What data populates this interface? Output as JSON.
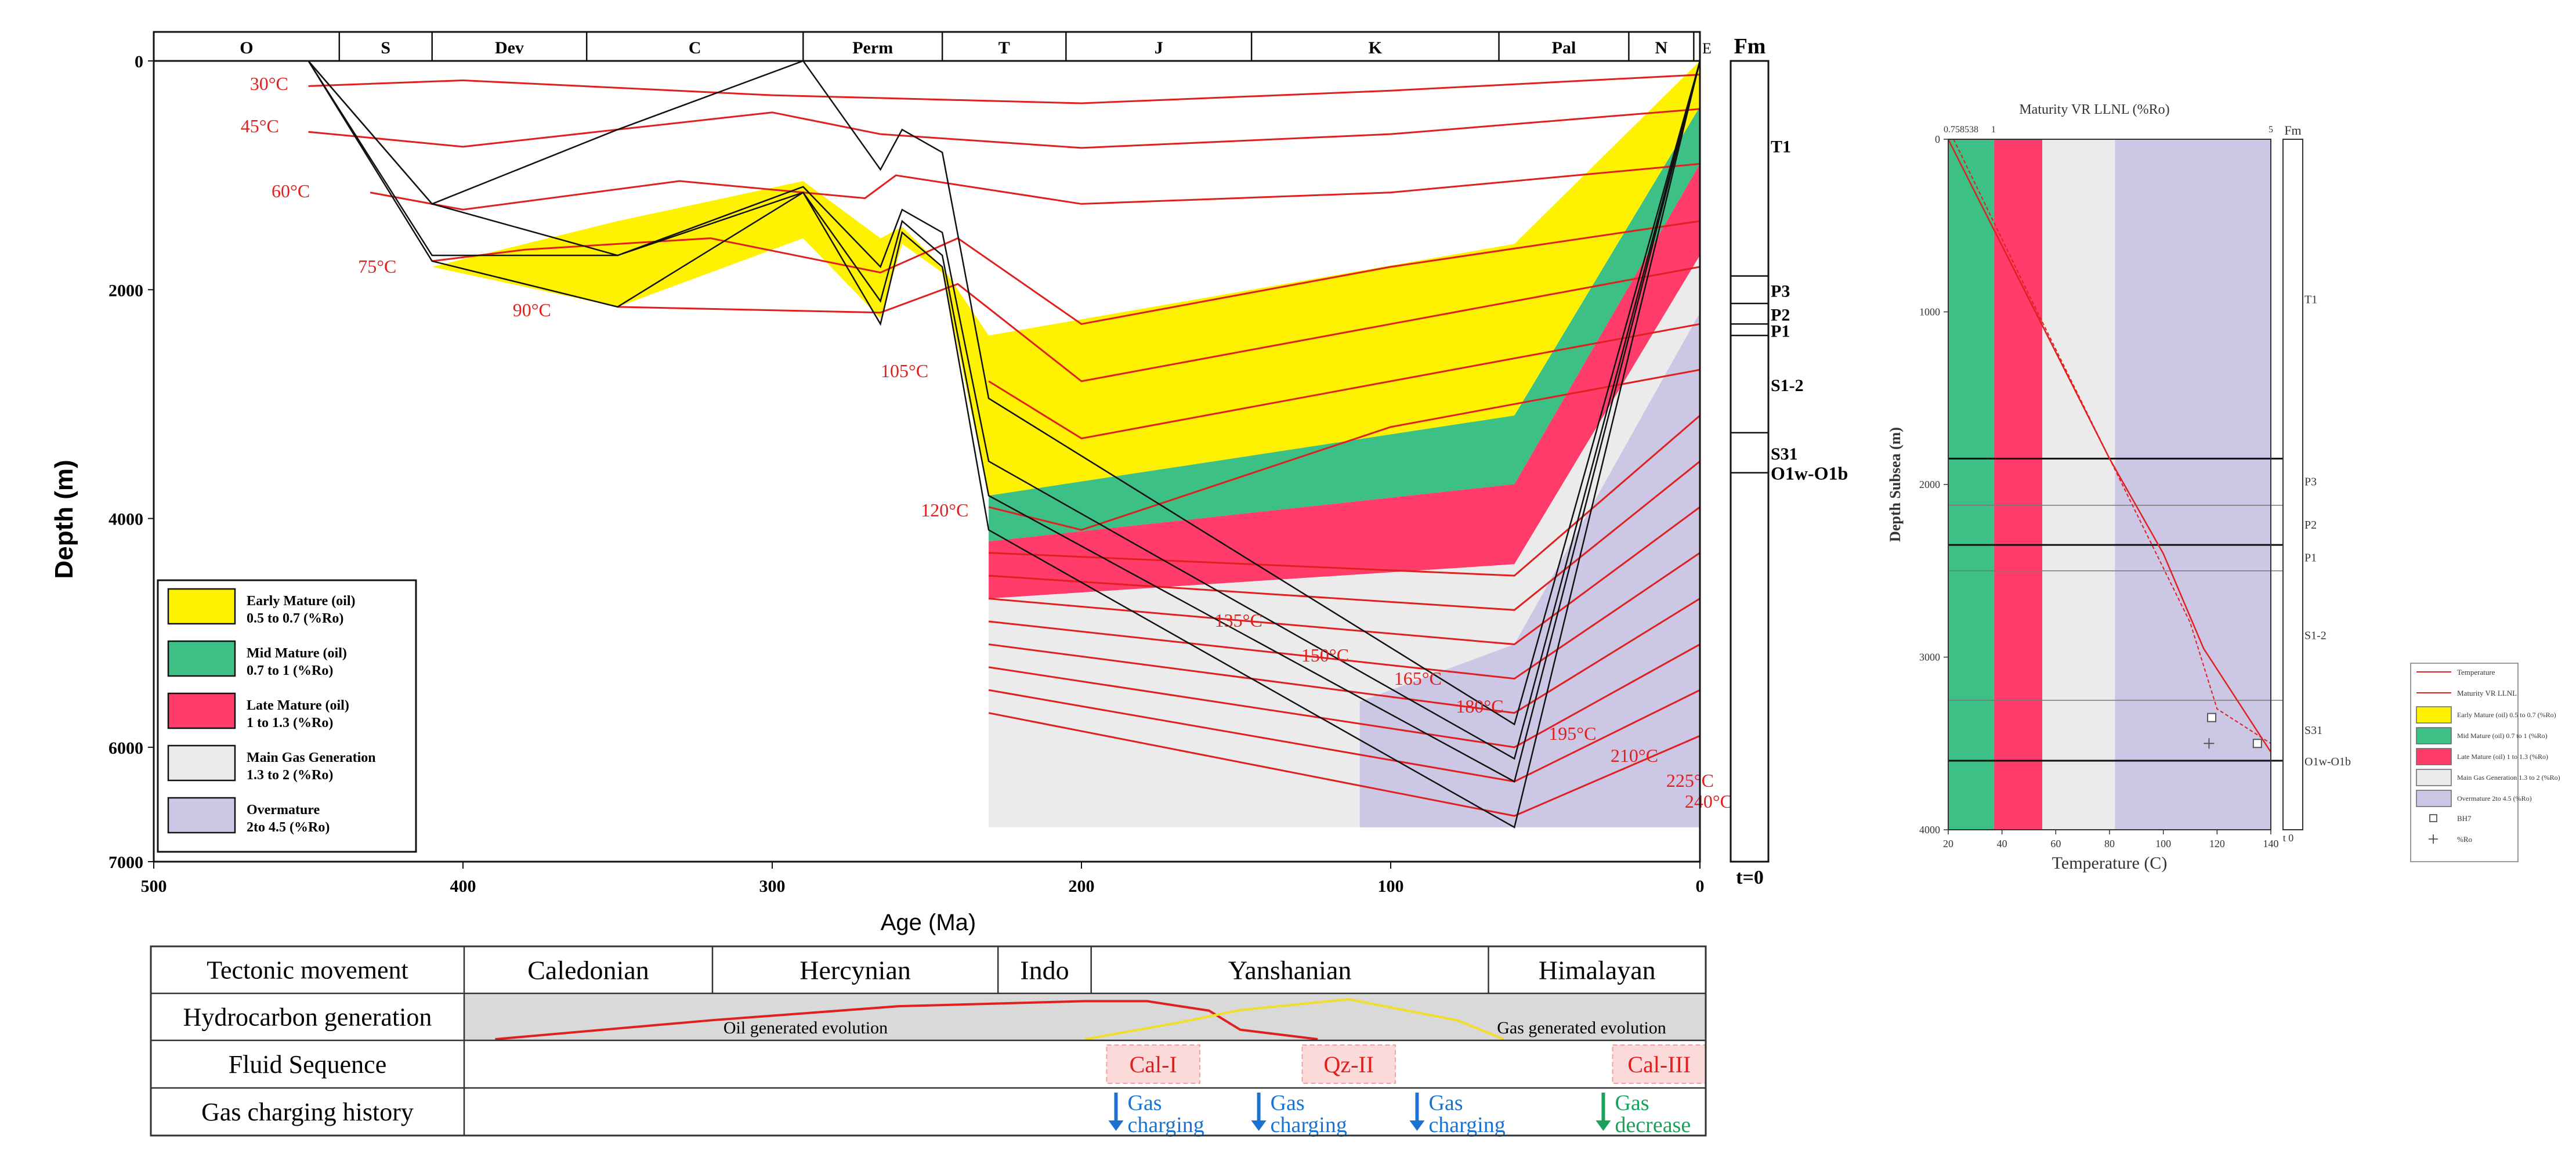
{
  "chart_data": [
    {
      "type": "burial-history",
      "title": "",
      "xlabel": "Age (Ma)",
      "ylabel": "Depth (m)",
      "xlim": [
        500,
        0
      ],
      "ylim": [
        0,
        7000
      ],
      "x_ticks": [
        "500",
        "400",
        "300",
        "200",
        "100",
        "0"
      ],
      "y_ticks": [
        "0",
        "2000",
        "4000",
        "6000",
        "7000"
      ],
      "periods": [
        {
          "label": "O",
          "start": 500,
          "end": 440
        },
        {
          "label": "S",
          "start": 440,
          "end": 410
        },
        {
          "label": "Dev",
          "start": 410,
          "end": 360
        },
        {
          "label": "C",
          "start": 360,
          "end": 290
        },
        {
          "label": "Perm",
          "start": 290,
          "end": 245
        },
        {
          "label": "T",
          "start": 245,
          "end": 205
        },
        {
          "label": "J",
          "start": 205,
          "end": 145
        },
        {
          "label": "K",
          "start": 145,
          "end": 65
        },
        {
          "label": "Pal",
          "start": 65,
          "end": 23
        },
        {
          "label": "N",
          "start": 23,
          "end": 2
        },
        {
          "label": "E",
          "start": 2,
          "end": 0
        }
      ],
      "formation_column_title": "Fm",
      "formation_column_footer": "t=0",
      "formations": [
        {
          "name": "T1",
          "top": 0,
          "base": 1880
        },
        {
          "name": "P3",
          "top": 1880,
          "base": 2120
        },
        {
          "name": "P2",
          "top": 2120,
          "base": 2300
        },
        {
          "name": "P1",
          "top": 2300,
          "base": 2400
        },
        {
          "name": "S1-2",
          "top": 2400,
          "base": 3250
        },
        {
          "name": "S31",
          "top": 3250,
          "base": 3600
        },
        {
          "name": "O1w-O1b",
          "top": 3600,
          "base": 7000
        }
      ],
      "isotherm_labels": [
        "30°C",
        "45°C",
        "60°C",
        "75°C",
        "90°C",
        "105°C",
        "120°C",
        "135°C",
        "150°C",
        "165°C",
        "180°C",
        "195°C",
        "210°C",
        "225°C",
        "240°C"
      ],
      "maturity_legend": [
        {
          "title": "Early Mature (oil)",
          "range": "0.5 to 0.7 (%Ro)",
          "color": "#fff200"
        },
        {
          "title": "Mid Mature (oil)",
          "range": "0.7 to 1 (%Ro)",
          "color": "#3cc085"
        },
        {
          "title": "Late Mature (oil)",
          "range": "1 to 1.3 (%Ro)",
          "color": "#ff3c6a"
        },
        {
          "title": "Main Gas Generation",
          "range": "1.3 to 2 (%Ro)",
          "color": "#ebebeb"
        },
        {
          "title": "Overmature",
          "range": "2to 4.5 (%Ro)",
          "color": "#cdc7e6"
        }
      ],
      "burial_ages": [
        450,
        410,
        350,
        290,
        265,
        258,
        245,
        230,
        60,
        0
      ],
      "burial_curves": [
        [
          0,
          1750,
          2150,
          1150,
          2300,
          1500,
          1800,
          4100,
          6700,
          0
        ],
        [
          0,
          1700,
          1700,
          1150,
          2100,
          1400,
          1700,
          3800,
          6300,
          0
        ],
        [
          0,
          1250,
          1700,
          1100,
          1800,
          1300,
          1500,
          3500,
          6100,
          0
        ],
        [
          0,
          1250,
          600,
          0,
          950,
          600,
          800,
          2950,
          5800,
          0
        ]
      ],
      "maturity_bands": [
        {
          "name": "Early Mature",
          "ages": [
            410,
            350,
            290,
            265,
            258,
            245,
            230,
            60,
            0
          ],
          "top": [
            1800,
            1400,
            1050,
            1550,
            1450,
            1800,
            2400,
            1600,
            0
          ],
          "base": [
            1800,
            2150,
            1550,
            2250,
            1600,
            1850,
            3800,
            3100,
            400
          ]
        },
        {
          "name": "Mid Mature",
          "ages": [
            230,
            60,
            0
          ],
          "top": [
            3800,
            3100,
            400
          ],
          "base": [
            4200,
            3700,
            900
          ]
        },
        {
          "name": "Late Mature",
          "ages": [
            230,
            60,
            0
          ],
          "top": [
            4200,
            3700,
            900
          ],
          "base": [
            4700,
            4400,
            1700
          ]
        },
        {
          "name": "Main Gas Generation",
          "ages": [
            230,
            60,
            0
          ],
          "top": [
            4700,
            4400,
            1700
          ],
          "base": [
            6700,
            6700,
            2200
          ]
        },
        {
          "name": "Overmature",
          "ages": [
            110,
            60,
            0
          ],
          "top": [
            5600,
            5100,
            2200
          ],
          "base": [
            6700,
            6700,
            6700
          ]
        }
      ],
      "isotherms": [
        {
          "label": "30°C",
          "ages": [
            450,
            400,
            300,
            200,
            100,
            0
          ],
          "depths": [
            220,
            170,
            300,
            370,
            260,
            120
          ]
        },
        {
          "label": "45°C",
          "ages": [
            450,
            400,
            300,
            265,
            200,
            100,
            0
          ],
          "depths": [
            620,
            750,
            450,
            640,
            760,
            640,
            420
          ]
        },
        {
          "label": "60°C",
          "ages": [
            430,
            400,
            330,
            270,
            260,
            200,
            100,
            0
          ],
          "depths": [
            1150,
            1300,
            1050,
            1200,
            1000,
            1250,
            1150,
            900
          ]
        },
        {
          "label": "75°C",
          "ages": [
            410,
            380,
            320,
            265,
            240,
            200,
            100,
            0
          ],
          "depths": [
            1750,
            1650,
            1550,
            1850,
            1550,
            2300,
            1800,
            1400
          ]
        },
        {
          "label": "90°C",
          "ages": [
            350,
            265,
            240,
            200,
            100,
            0
          ],
          "depths": [
            2150,
            2200,
            1950,
            2800,
            2300,
            1800
          ]
        },
        {
          "label": "105°C",
          "ages": [
            230,
            200,
            100,
            0
          ],
          "depths": [
            2800,
            3300,
            2800,
            2300
          ]
        },
        {
          "label": "120°C",
          "ages": [
            230,
            200,
            100,
            0
          ],
          "depths": [
            3900,
            4100,
            3200,
            2700
          ]
        },
        {
          "label": "135°C",
          "ages": [
            230,
            60,
            0
          ],
          "depths": [
            4300,
            4500,
            3100
          ]
        },
        {
          "label": "150°C",
          "ages": [
            230,
            60,
            0
          ],
          "depths": [
            4500,
            4800,
            3500
          ]
        },
        {
          "label": "165°C",
          "ages": [
            230,
            60,
            0
          ],
          "depths": [
            4700,
            5100,
            3900
          ]
        },
        {
          "label": "180°C",
          "ages": [
            230,
            60,
            0
          ],
          "depths": [
            4900,
            5400,
            4300
          ]
        },
        {
          "label": "195°C",
          "ages": [
            230,
            60,
            0
          ],
          "depths": [
            5100,
            5700,
            4700
          ]
        },
        {
          "label": "210°C",
          "ages": [
            230,
            60,
            0
          ],
          "depths": [
            5300,
            6000,
            5100
          ]
        },
        {
          "label": "225°C",
          "ages": [
            230,
            60,
            0
          ],
          "depths": [
            5500,
            6300,
            5500
          ]
        },
        {
          "label": "240°C",
          "ages": [
            230,
            60,
            0
          ],
          "depths": [
            5700,
            6600,
            5900
          ]
        }
      ]
    },
    {
      "type": "line",
      "title": "Maturity VR LLNL (%Ro)",
      "xlabel": "Temperature (C)",
      "ylabel": "Depth Subsea (m)",
      "xlim": [
        20,
        140
      ],
      "ylim": [
        0,
        4000
      ],
      "x_ticks": [
        "20",
        "40",
        "60",
        "80",
        "100",
        "120",
        "140"
      ],
      "y_ticks": [
        "0",
        "1000",
        "2000",
        "3000",
        "4000"
      ],
      "top_axis_ticks": [
        "0.758538",
        "1",
        "5"
      ],
      "formation_column_title": "Fm",
      "formation_column_footer": "t 0",
      "formations": [
        {
          "name": "T1",
          "top": 0,
          "base": 1850
        },
        {
          "name": "P3",
          "top": 1850,
          "base": 2120
        },
        {
          "name": "P2",
          "top": 2120,
          "base": 2350
        },
        {
          "name": "P1",
          "top": 2350,
          "base": 2500
        },
        {
          "name": "S1-2",
          "top": 2500,
          "base": 3250
        },
        {
          "name": "S31",
          "top": 3250,
          "base": 3600
        },
        {
          "name": "O1w-O1b",
          "top": 3600,
          "base": 4000
        }
      ],
      "maturity_bands": [
        {
          "name": "Early Mature",
          "x_start": 20,
          "x_end": 20
        },
        {
          "name": "Mid Mature",
          "x_start": 20,
          "x_end": 37
        },
        {
          "name": "Late Mature",
          "x_start": 37,
          "x_end": 55
        },
        {
          "name": "Main Gas Generation",
          "x_start": 55,
          "x_end": 82
        },
        {
          "name": "Overmature",
          "x_start": 82,
          "x_end": 140
        }
      ],
      "series": [
        {
          "name": "Temperature",
          "x": [
            20,
            80,
            100,
            115,
            140
          ],
          "y": [
            0,
            1850,
            2400,
            2950,
            3550
          ]
        },
        {
          "name": "Maturity VR LLNL",
          "x": [
            22,
            50,
            80,
            110,
            120,
            140
          ],
          "y": [
            0,
            900,
            1850,
            2800,
            3300,
            3500
          ]
        }
      ],
      "markers": [
        {
          "type": "box",
          "label": "BH7",
          "x": 118,
          "y": 3350
        },
        {
          "type": "box",
          "label": "BH7",
          "x": 135,
          "y": 3500
        },
        {
          "type": "cross",
          "label": "%Ro",
          "x": 117,
          "y": 3500
        }
      ],
      "legend": [
        {
          "label": "Temperature",
          "kind": "line",
          "color": "#e0201f"
        },
        {
          "label": "Maturity VR LLNL",
          "kind": "line",
          "color": "#e0201f"
        },
        {
          "label": "Early Mature (oil) 0.5 to 0.7 (%Ro)",
          "kind": "box",
          "color": "#fff200"
        },
        {
          "label": "Mid Mature (oil) 0.7 to 1 (%Ro)",
          "kind": "box",
          "color": "#3cc085"
        },
        {
          "label": "Late Mature (oil) 1 to 1.3 (%Ro)",
          "kind": "box",
          "color": "#ff3c6a"
        },
        {
          "label": "Main Gas Generation 1.3 to 2 (%Ro)",
          "kind": "box",
          "color": "#ebebeb"
        },
        {
          "label": "Overmature 2to 4.5 (%Ro)",
          "kind": "box",
          "color": "#cdc7e6"
        },
        {
          "label": "BH7",
          "kind": "square",
          "color": "#333333"
        },
        {
          "label": "%Ro",
          "kind": "cross",
          "color": "#333333"
        }
      ]
    },
    {
      "type": "table",
      "rows": [
        "Tectonic movement",
        "Hydrocarbon generation",
        "Fluid Sequence",
        "Gas charging history"
      ],
      "tectonic": [
        {
          "label": "Caledonian",
          "start": 400,
          "end": 320
        },
        {
          "label": "Hercynian",
          "start": 320,
          "end": 228
        },
        {
          "label": "Indo",
          "start": 228,
          "end": 198
        },
        {
          "label": "Yanshanian",
          "start": 198,
          "end": 70
        },
        {
          "label": "Himalayan",
          "start": 70,
          "end": 0
        }
      ],
      "oil_label": "Oil generated evolution",
      "gas_label": "Gas generated evolution",
      "oil_curve": {
        "ages": [
          390,
          320,
          260,
          200,
          180,
          160,
          150,
          125
        ],
        "values": [
          0.0,
          0.3,
          0.52,
          0.6,
          0.6,
          0.45,
          0.15,
          0.0
        ]
      },
      "gas_curve": {
        "ages": [
          200,
          170,
          150,
          115,
          80,
          65
        ],
        "values": [
          0.0,
          0.35,
          0.62,
          0.85,
          0.4,
          0.0
        ]
      },
      "fluid_sequence": [
        {
          "label": "Cal-I",
          "start": 193,
          "end": 163
        },
        {
          "label": "Qz-II",
          "start": 130,
          "end": 100
        },
        {
          "label": "Cal-III",
          "start": 30,
          "end": 0
        }
      ],
      "gas_charging": [
        {
          "line1": "Gas",
          "line2": "charging",
          "age": 190,
          "color": "#1a73d1"
        },
        {
          "line1": "Gas",
          "line2": "charging",
          "age": 144,
          "color": "#1a73d1"
        },
        {
          "line1": "Gas",
          "line2": "charging",
          "age": 93,
          "color": "#1a73d1"
        },
        {
          "line1": "Gas",
          "line2": "decrease",
          "age": 33,
          "color": "#19a35a"
        }
      ]
    }
  ]
}
